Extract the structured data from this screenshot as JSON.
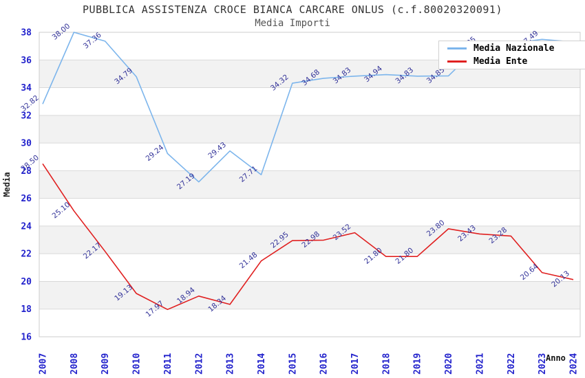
{
  "header": {
    "title": "PUBBLICA ASSISTENZA CROCE BIANCA CARCARE ONLUS (c.f.80020320091)",
    "subtitle": "Media Importi"
  },
  "axes": {
    "y_title": "Media",
    "x_title": "Anno"
  },
  "legend": {
    "position": "top-right",
    "items": [
      {
        "label": "Media Nazionale",
        "color": "#7cb5ec"
      },
      {
        "label": "Media Ente",
        "color": "#e02020"
      }
    ]
  },
  "colors": {
    "band_grey": "#f2f2f2",
    "gridline": "#d9d9d9",
    "plot_border": "#cccccc",
    "tick_label_blue": "#2222cc",
    "data_label_navy": "#333399",
    "series_nazionale": "#7cb5ec",
    "series_ente": "#e02020"
  },
  "chart_data": {
    "type": "line",
    "title": "PUBBLICA ASSISTENZA CROCE BIANCA CARCARE ONLUS (c.f.80020320091)",
    "subtitle": "Media Importi",
    "xlabel": "Anno",
    "ylabel": "Media",
    "x": [
      "2007",
      "2008",
      "2009",
      "2010",
      "2011",
      "2012",
      "2013",
      "2014",
      "2015",
      "2016",
      "2017",
      "2018",
      "2019",
      "2020",
      "2021",
      "2022",
      "2023",
      "2024"
    ],
    "ylim": [
      16,
      38
    ],
    "ytick_step": 2,
    "grid": "horizontal-lines-with-alternating-grey-bands",
    "legend_position": "top-right-overlapping-plot",
    "series": [
      {
        "name": "Media Nazionale",
        "color": "#7cb5ec",
        "values": [
          32.82,
          38.0,
          37.36,
          34.79,
          29.24,
          27.19,
          29.43,
          27.71,
          34.32,
          34.68,
          34.83,
          34.94,
          34.83,
          34.85,
          37.05,
          37.2,
          37.49,
          37.3
        ],
        "point_labels": [
          "32.82",
          "38.00",
          "37.36",
          "34.79",
          "29.24",
          "27.19",
          "29.43",
          "27.71",
          "34.32",
          "34.68",
          "34.83",
          "34.94",
          "34.83",
          "34.85",
          "37.05",
          "",
          "37.49",
          ""
        ],
        "note": "2022 and 2024 point labels are hidden behind the legend box in the source image; their values are estimated from the line path"
      },
      {
        "name": "Media Ente",
        "color": "#e02020",
        "values": [
          28.5,
          25.1,
          22.17,
          19.13,
          17.97,
          18.94,
          18.34,
          21.48,
          22.95,
          22.98,
          23.52,
          21.8,
          21.8,
          23.8,
          23.43,
          23.28,
          20.64,
          20.13
        ],
        "point_labels": [
          "28.50",
          "25.10",
          "22.17",
          "19.13",
          "17.97",
          "18.94",
          "18.34",
          "21.48",
          "22.95",
          "22.98",
          "23.52",
          "21.80",
          "21.80",
          "23.80",
          "23.43",
          "23.28",
          "20.64",
          "20.13"
        ]
      }
    ]
  }
}
